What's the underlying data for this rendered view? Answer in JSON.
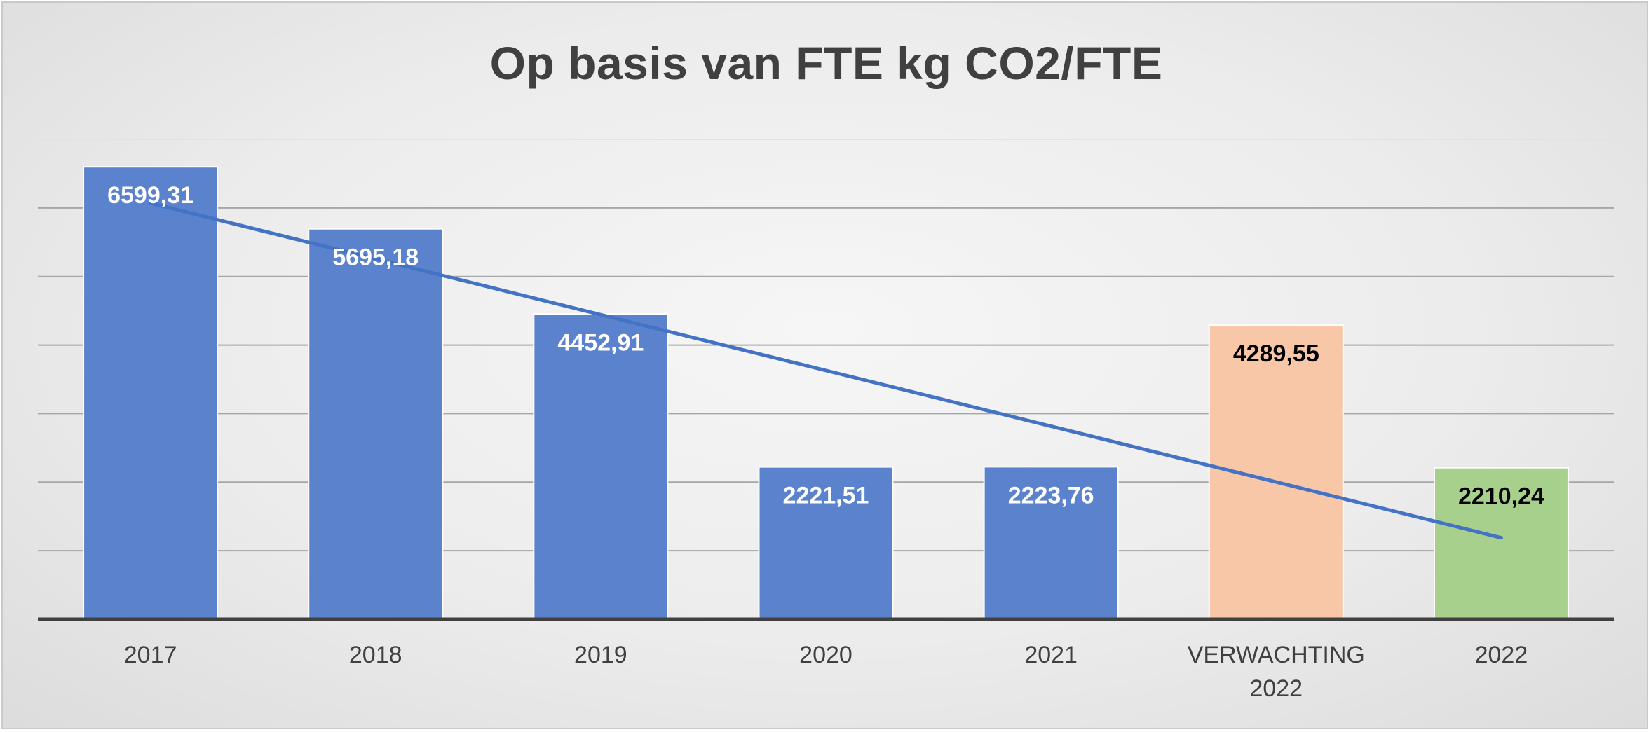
{
  "chart_data": {
    "type": "bar",
    "title": "Op basis van FTE kg CO2/FTE",
    "categories": [
      "2017",
      "2018",
      "2019",
      "2020",
      "2021",
      "VERWACHTING 2022",
      "2022"
    ],
    "category_lines": [
      [
        "2017"
      ],
      [
        "2018"
      ],
      [
        "2019"
      ],
      [
        "2020"
      ],
      [
        "2021"
      ],
      [
        "VERWACHTING",
        "2022"
      ],
      [
        "2022"
      ]
    ],
    "values": [
      6599.31,
      5695.18,
      4452.91,
      2221.51,
      2223.76,
      4289.55,
      2210.24
    ],
    "data_labels": [
      "6599,31",
      "5695,18",
      "4452,91",
      "2221,51",
      "2223,76",
      "4289,55",
      "2210,24"
    ],
    "bar_colors": [
      "#5b82cc",
      "#5b82cc",
      "#5b82cc",
      "#5b82cc",
      "#5b82cc",
      "#f7c7a7",
      "#a8d08d"
    ],
    "label_colors": [
      "#ffffff",
      "#ffffff",
      "#ffffff",
      "#ffffff",
      "#ffffff",
      "#000000",
      "#000000"
    ],
    "trendline": {
      "type": "linear",
      "color": "#4472c4",
      "series": [
        0,
        1,
        2,
        3,
        4,
        6
      ]
    },
    "ylim": [
      0,
      7000
    ],
    "gridlines": [
      1000,
      2000,
      3000,
      4000,
      5000,
      6000,
      7000
    ],
    "grid": true,
    "y_tick_labels_shown": false,
    "xlabel": "",
    "ylabel": ""
  }
}
